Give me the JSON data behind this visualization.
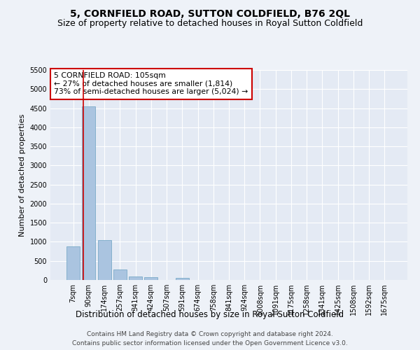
{
  "title": "5, CORNFIELD ROAD, SUTTON COLDFIELD, B76 2QL",
  "subtitle": "Size of property relative to detached houses in Royal Sutton Coldfield",
  "xlabel": "Distribution of detached houses by size in Royal Sutton Coldfield",
  "ylabel": "Number of detached properties",
  "footer_line1": "Contains HM Land Registry data © Crown copyright and database right 2024.",
  "footer_line2": "Contains public sector information licensed under the Open Government Licence v3.0.",
  "annotation_line1": "5 CORNFIELD ROAD: 105sqm",
  "annotation_line2": "← 27% of detached houses are smaller (1,814)",
  "annotation_line3": "73% of semi-detached houses are larger (5,024) →",
  "bar_categories": [
    "7sqm",
    "90sqm",
    "174sqm",
    "257sqm",
    "341sqm",
    "424sqm",
    "507sqm",
    "591sqm",
    "674sqm",
    "758sqm",
    "841sqm",
    "924sqm",
    "1008sqm",
    "1091sqm",
    "1175sqm",
    "1258sqm",
    "1341sqm",
    "1425sqm",
    "1508sqm",
    "1592sqm",
    "1675sqm"
  ],
  "bar_values": [
    880,
    4550,
    1050,
    275,
    90,
    70,
    0,
    50,
    0,
    0,
    0,
    0,
    0,
    0,
    0,
    0,
    0,
    0,
    0,
    0,
    0
  ],
  "bar_color": "#aac4e0",
  "bar_edge_color": "#7aaac8",
  "vline_color": "#cc0000",
  "vline_x_index": 1,
  "ylim": [
    0,
    5500
  ],
  "yticks": [
    0,
    500,
    1000,
    1500,
    2000,
    2500,
    3000,
    3500,
    4000,
    4500,
    5000,
    5500
  ],
  "annotation_box_facecolor": "#ffffff",
  "annotation_box_edgecolor": "#cc0000",
  "bg_color": "#eef2f8",
  "plot_bg_color": "#e4eaf4",
  "grid_color": "#ffffff",
  "title_fontsize": 10,
  "subtitle_fontsize": 9,
  "ylabel_fontsize": 8,
  "xlabel_fontsize": 8.5,
  "tick_fontsize": 7,
  "annotation_fontsize": 7.8,
  "footer_fontsize": 6.5
}
